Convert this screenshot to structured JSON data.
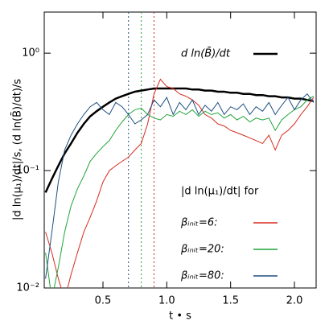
{
  "chart_data": {
    "type": "line",
    "xlabel": "t • s",
    "ylabel": "|d ln(μ₁)/dt|/s, (d ln(B̄)/dt)/s",
    "legend_heading": "|d ln(μ₁)/dt| for",
    "log_y": true,
    "xlim": [
      0.04,
      2.17
    ],
    "ylim": [
      0.01,
      2.24
    ],
    "xticks": [
      0.5,
      {
        "value": 1.0,
        "label": "1.0"
      },
      1.5,
      {
        "value": 2.0,
        "label": "2.0"
      }
    ],
    "yticks": [
      {
        "value": 0.01,
        "label": "10⁻²"
      },
      {
        "value": 0.1,
        "label": "10⁻¹"
      },
      {
        "value": 1,
        "label": "10⁰"
      }
    ],
    "x": [
      0.05,
      0.1,
      0.15,
      0.2,
      0.25,
      0.3,
      0.35,
      0.4,
      0.45,
      0.5,
      0.55,
      0.6,
      0.65,
      0.7,
      0.75,
      0.8,
      0.85,
      0.9,
      0.95,
      1.0,
      1.05,
      1.1,
      1.15,
      1.2,
      1.25,
      1.3,
      1.35,
      1.4,
      1.45,
      1.5,
      1.55,
      1.6,
      1.65,
      1.7,
      1.75,
      1.8,
      1.85,
      1.9,
      1.95,
      2.0,
      2.05,
      2.1,
      2.15
    ],
    "series": [
      {
        "name": "d ln(B̄)/dt",
        "color": "#000000",
        "width": 2.5,
        "values": [
          0.065,
          0.085,
          0.11,
          0.14,
          0.17,
          0.21,
          0.25,
          0.29,
          0.32,
          0.35,
          0.38,
          0.41,
          0.43,
          0.45,
          0.47,
          0.48,
          0.49,
          0.5,
          0.5,
          0.5,
          0.5,
          0.5,
          0.5,
          0.49,
          0.49,
          0.48,
          0.48,
          0.47,
          0.47,
          0.46,
          0.46,
          0.45,
          0.45,
          0.44,
          0.44,
          0.43,
          0.43,
          0.42,
          0.42,
          0.41,
          0.41,
          0.4,
          0.39
        ]
      },
      {
        "name": "βᵢₙᵢₜ=6:",
        "color": "#d62a1e",
        "width": 1,
        "values": [
          0.03,
          0.02,
          0.012,
          0.008,
          0.013,
          0.02,
          0.03,
          0.04,
          0.055,
          0.08,
          0.1,
          0.11,
          0.12,
          0.13,
          0.15,
          0.17,
          0.25,
          0.45,
          0.6,
          0.52,
          0.5,
          0.45,
          0.43,
          0.4,
          0.36,
          0.3,
          0.28,
          0.25,
          0.24,
          0.22,
          0.21,
          0.2,
          0.19,
          0.18,
          0.17,
          0.2,
          0.15,
          0.2,
          0.22,
          0.25,
          0.3,
          0.35,
          0.42
        ]
      },
      {
        "name": "βᵢₙᵢₜ=20:",
        "color": "#1fa33a",
        "width": 1,
        "values": [
          0.02,
          0.008,
          0.015,
          0.03,
          0.05,
          0.07,
          0.09,
          0.12,
          0.14,
          0.16,
          0.18,
          0.22,
          0.26,
          0.3,
          0.33,
          0.34,
          0.3,
          0.28,
          0.27,
          0.3,
          0.29,
          0.32,
          0.3,
          0.33,
          0.29,
          0.32,
          0.3,
          0.31,
          0.28,
          0.3,
          0.27,
          0.29,
          0.26,
          0.28,
          0.27,
          0.28,
          0.22,
          0.27,
          0.3,
          0.33,
          0.35,
          0.4,
          0.43
        ]
      },
      {
        "name": "βᵢₙᵢₜ=80:",
        "color": "#1d4f80",
        "width": 1,
        "values": [
          0.012,
          0.03,
          0.08,
          0.15,
          0.2,
          0.25,
          0.3,
          0.35,
          0.38,
          0.33,
          0.3,
          0.38,
          0.35,
          0.3,
          0.25,
          0.27,
          0.3,
          0.4,
          0.35,
          0.42,
          0.3,
          0.38,
          0.33,
          0.4,
          0.3,
          0.36,
          0.32,
          0.38,
          0.3,
          0.35,
          0.33,
          0.37,
          0.3,
          0.35,
          0.32,
          0.38,
          0.3,
          0.36,
          0.42,
          0.33,
          0.4,
          0.45,
          0.38
        ]
      }
    ],
    "vlines": [
      {
        "x": 0.7,
        "color": "#1d4f80"
      },
      {
        "x": 0.8,
        "color": "#1fa33a"
      },
      {
        "x": 0.9,
        "color": "#d62a1e"
      }
    ]
  }
}
